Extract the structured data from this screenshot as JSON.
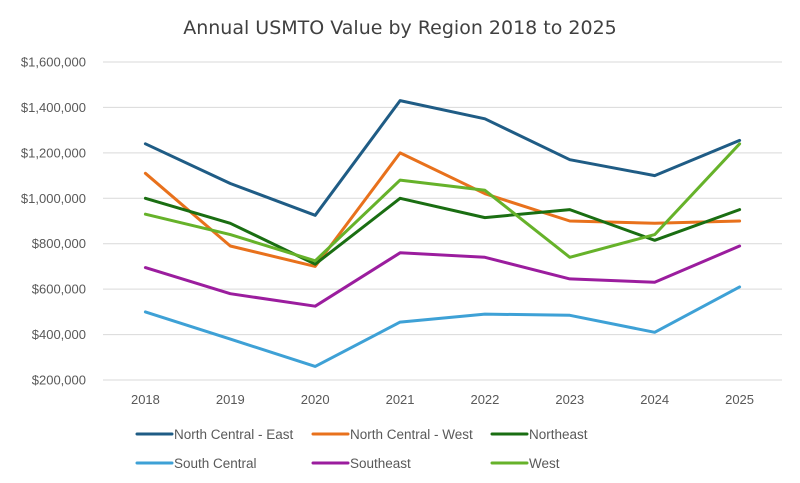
{
  "chart_data": {
    "type": "line",
    "title": "Annual USMTO Value by Region 2018 to 2025",
    "xlabel": "",
    "ylabel": "",
    "categories": [
      "2018",
      "2019",
      "2020",
      "2021",
      "2022",
      "2023",
      "2024",
      "2025"
    ],
    "ylim": [
      200000,
      1600000
    ],
    "yticks": [
      200000,
      400000,
      600000,
      800000,
      1000000,
      1200000,
      1400000,
      1600000
    ],
    "ytick_labels": [
      "$200,000",
      "$400,000",
      "$600,000",
      "$800,000",
      "$1,000,000",
      "$1,200,000",
      "$1,400,000",
      "$1,600,000"
    ],
    "grid": true,
    "legend_position": "bottom",
    "series": [
      {
        "name": "North Central - East",
        "color": "#1f5c85",
        "values": [
          1240000,
          1065000,
          925000,
          1430000,
          1350000,
          1170000,
          1100000,
          1255000
        ]
      },
      {
        "name": "North Central - West",
        "color": "#e8711c",
        "values": [
          1110000,
          790000,
          700000,
          1200000,
          1020000,
          900000,
          890000,
          900000
        ]
      },
      {
        "name": "Northeast",
        "color": "#1a6e12",
        "values": [
          1000000,
          890000,
          710000,
          1000000,
          915000,
          950000,
          815000,
          950000
        ]
      },
      {
        "name": "South Central",
        "color": "#3ea1d6",
        "values": [
          500000,
          380000,
          260000,
          455000,
          490000,
          485000,
          410000,
          610000
        ]
      },
      {
        "name": "Southeast",
        "color": "#9b1d9e",
        "values": [
          695000,
          580000,
          525000,
          760000,
          740000,
          645000,
          630000,
          790000
        ]
      },
      {
        "name": "West",
        "color": "#66b22a",
        "values": [
          930000,
          840000,
          725000,
          1080000,
          1035000,
          740000,
          840000,
          1240000
        ]
      }
    ]
  }
}
